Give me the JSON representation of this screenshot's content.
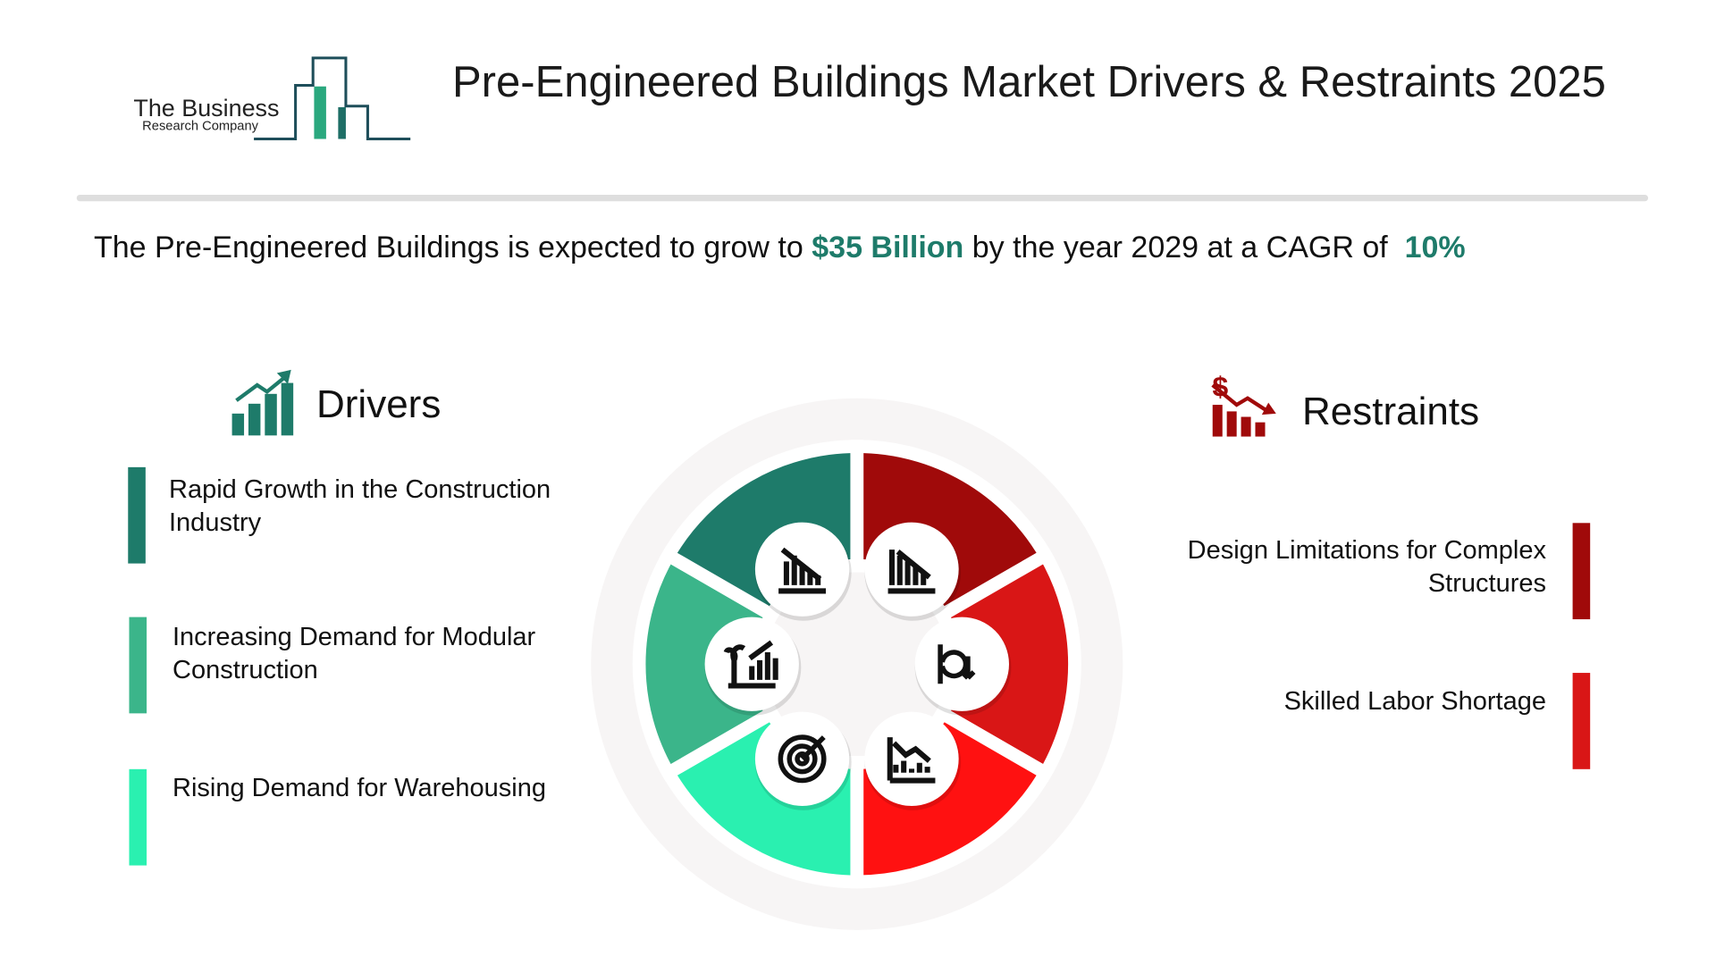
{
  "logo": {
    "line1": "The Business",
    "line2": "Research Company"
  },
  "header": {
    "title": "Pre-Engineered Buildings Market Drivers & Restraints 2025"
  },
  "summary": {
    "prefix": "The Pre-Engineered Buildings is expected to grow to",
    "value": "$35 Billion",
    "middle": "by the year 2029 at a CAGR of",
    "rate": "10%"
  },
  "drivers": {
    "heading": "Drivers",
    "items": [
      "Rapid Growth in the Construction Industry",
      "Increasing Demand for Modular Construction",
      "Rising Demand for Warehousing"
    ]
  },
  "restraints": {
    "heading": "Restraints",
    "items": [
      "Design Limitations for Complex Structures",
      "Skilled Labor Shortage"
    ]
  }
}
